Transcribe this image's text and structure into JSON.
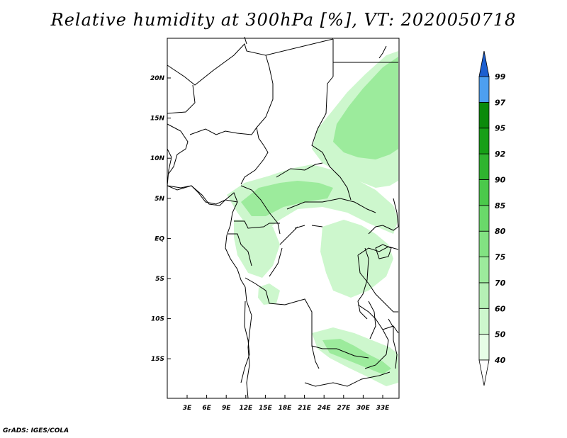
{
  "title": "Relative humidity at 300hPa [%], VT: 2020050718",
  "footer": "GrADS: IGES/COLA",
  "map": {
    "lat_labels": [
      "20N",
      "15N",
      "10N",
      "5N",
      "EQ",
      "5S",
      "10S",
      "15S"
    ],
    "lon_labels": [
      "3E",
      "6E",
      "9E",
      "12E",
      "15E",
      "18E",
      "21E",
      "24E",
      "27E",
      "30E",
      "33E"
    ],
    "lon_range": [
      0,
      35
    ],
    "lat_range": [
      -20,
      25
    ]
  },
  "colorbar": {
    "labels": [
      "40",
      "50",
      "60",
      "70",
      "75",
      "80",
      "85",
      "90",
      "92",
      "95",
      "97",
      "99"
    ],
    "colors": [
      "#ffffff",
      "#e6fde6",
      "#cdf7cd",
      "#b5f0b5",
      "#9ceb9c",
      "#82e282",
      "#6ad96a",
      "#4bc94b",
      "#2fb42f",
      "#169f16",
      "#0b8a0b",
      "#4d9ff0",
      "#2e7fe0",
      "#1c5fd0"
    ]
  },
  "legend_colors": {
    "land_border": "#000000"
  }
}
